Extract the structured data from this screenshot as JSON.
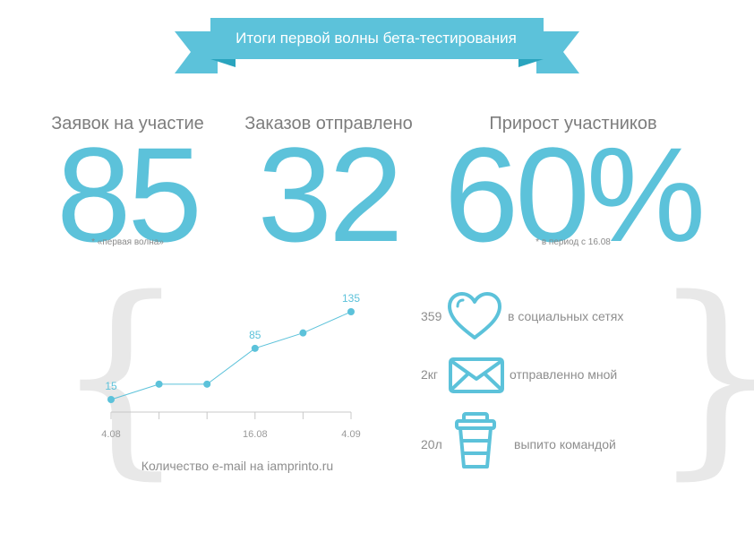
{
  "banner": {
    "title": "Итоги первой волны бета-тестирования"
  },
  "stats": [
    {
      "label": "Заявок на участие",
      "value": "85",
      "note": "* «первая волна»"
    },
    {
      "label": "Заказов отправлено",
      "value": "32",
      "note": ""
    },
    {
      "label": "Прирост участников",
      "value": "60%",
      "note": "* в период с 16.08"
    }
  ],
  "chart_data": {
    "type": "line",
    "x": [
      "4.08",
      "",
      "",
      "16.08",
      "",
      "4.09"
    ],
    "values": [
      15,
      36,
      36,
      85,
      106,
      135
    ],
    "point_labels": [
      "15",
      "",
      "",
      "85",
      "",
      "135"
    ],
    "tick_labels": [
      "4.08",
      "16.08",
      "4.09"
    ],
    "caption": "Количество e-mail на iamprinto.ru",
    "color": "#5cc2da"
  },
  "facts": [
    {
      "number": "359",
      "text": "в социальных сетях",
      "icon": "heart-icon"
    },
    {
      "number": "2кг",
      "text": "отправленно мной",
      "icon": "envelope-icon"
    },
    {
      "number": "20л",
      "text": "выпито командой",
      "icon": "coffee-cup-icon"
    }
  ],
  "colors": {
    "accent": "#5cc2da",
    "accent_dark": "#2aa4be",
    "brace": "#e8e8e8",
    "text": "#8a8a8a"
  }
}
